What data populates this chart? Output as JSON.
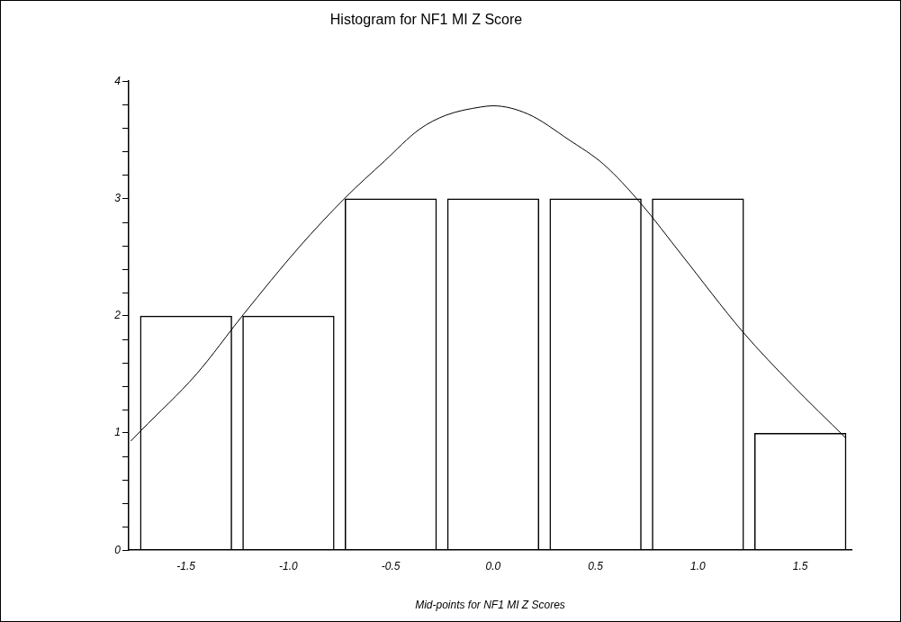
{
  "chart_data": {
    "type": "bar",
    "title": "Histogram for NF1 MI Z Score",
    "xlabel": "Mid-points for NF1 MI Z Scores",
    "x": [
      -1.5,
      -1,
      -0.5,
      0,
      0.5,
      1,
      1.5
    ],
    "values": [
      2,
      2,
      3,
      3,
      3,
      3,
      1
    ],
    "color": "#000000",
    "series": [
      {
        "type": "line",
        "color": "#000000",
        "x": [
          -1.77,
          -1.72,
          -1.45,
          -1.22,
          -0.95,
          -0.72,
          -0.53,
          -0.36,
          -0.23,
          -0.06,
          0.0,
          0.17,
          0.37,
          0.54,
          0.72,
          0.92,
          1.22,
          1.46,
          1.72
        ],
        "values": [
          0.93,
          1.02,
          1.5,
          2.01,
          2.58,
          3.01,
          3.32,
          3.59,
          3.71,
          3.78,
          3.79,
          3.72,
          3.5,
          3.29,
          2.96,
          2.52,
          1.86,
          1.41,
          0.96
        ]
      }
    ],
    "marker": "none",
    "xlim": [
      -1.78,
      1.75
    ],
    "xticks": [
      -1.5,
      {
        "value": -1,
        "label": "-1.0"
      },
      -0.5,
      {
        "value": 0,
        "label": "0.0"
      },
      0.5,
      {
        "value": 1,
        "label": "1.0"
      },
      1.5
    ],
    "ylim": [
      0,
      4
    ],
    "yticks": [
      0,
      {
        "value": 0.2,
        "label": null
      },
      {
        "value": 0.4,
        "label": null
      },
      {
        "value": 0.6,
        "label": null
      },
      {
        "value": 0.8,
        "label": null
      },
      1,
      {
        "value": 1.2,
        "label": null
      },
      {
        "value": 1.4,
        "label": null
      },
      {
        "value": 1.6,
        "label": null
      },
      {
        "value": 1.8,
        "label": null
      },
      2,
      {
        "value": 2.2,
        "label": null
      },
      {
        "value": 2.4,
        "label": null
      },
      {
        "value": 2.6,
        "label": null
      },
      {
        "value": 2.8,
        "label": null
      },
      3,
      {
        "value": 3.2,
        "label": null
      },
      {
        "value": 3.4,
        "label": null
      },
      {
        "value": 3.6,
        "label": null
      },
      {
        "value": 3.8,
        "label": null
      },
      4
    ]
  }
}
